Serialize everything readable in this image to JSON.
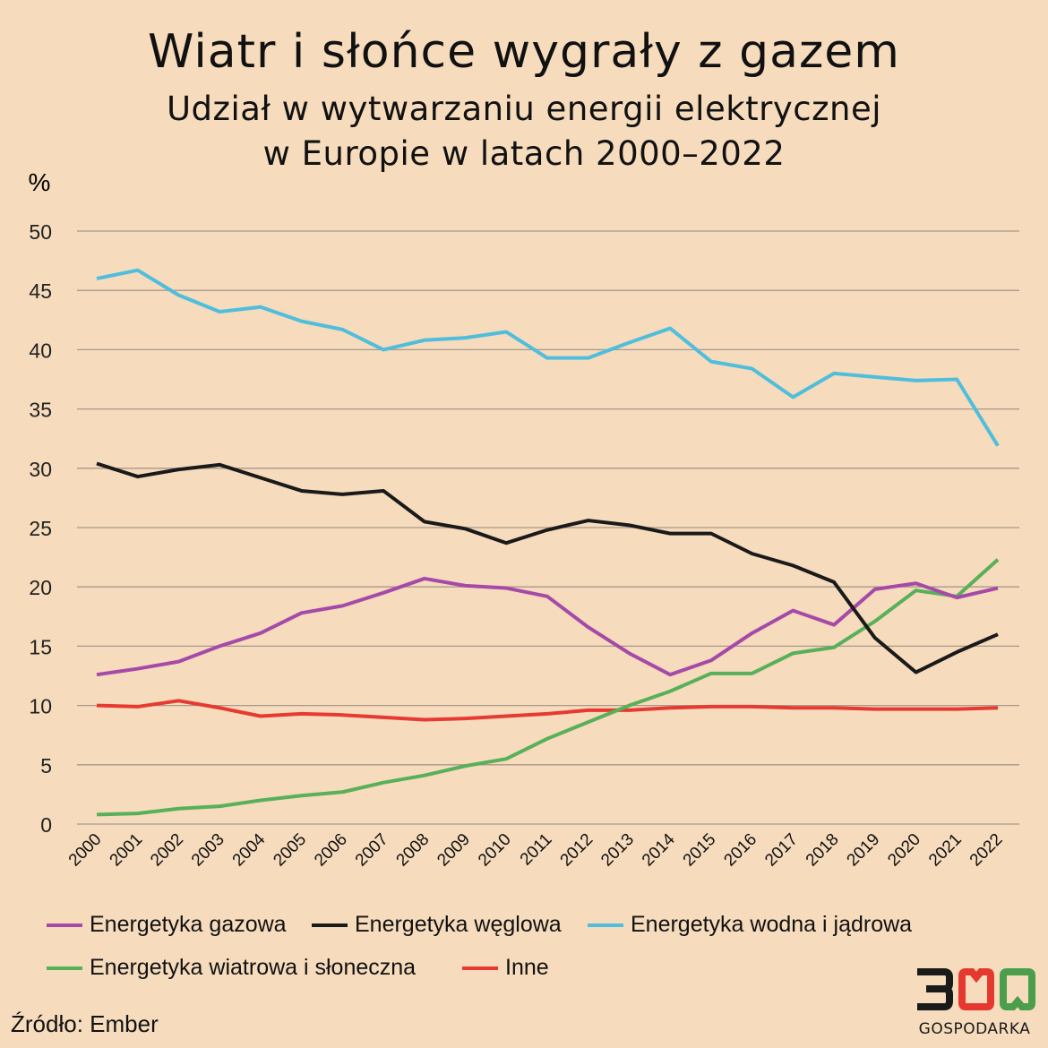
{
  "title": "Wiatr i słońce wygrały z gazem",
  "subtitle_line1": "Udział w wytwarzaniu energii elektrycznej",
  "subtitle_line2": "w Europie w latach 2000–2022",
  "source": "Źródło: Ember",
  "logo": {
    "text": "300",
    "subtext": "GOSPODARKA",
    "colors": [
      "#1a1a1a",
      "#e5392f",
      "#4a9e4c"
    ]
  },
  "chart_data": {
    "type": "line",
    "ylabel": "%",
    "ylim": [
      0,
      50
    ],
    "yticks": [
      0,
      5,
      10,
      15,
      20,
      25,
      30,
      35,
      40,
      45,
      50
    ],
    "grid": true,
    "legend_position": "bottom",
    "x": [
      "2000",
      "2001",
      "2002",
      "2003",
      "2004",
      "2005",
      "2006",
      "2007",
      "2008",
      "2009",
      "2010",
      "2011",
      "2012",
      "2013",
      "2014",
      "2015",
      "2016",
      "2017",
      "2018",
      "2019",
      "2020",
      "2021",
      "2022"
    ],
    "series": [
      {
        "name": "Energetyka gazowa",
        "color": "#a54aa8",
        "values": [
          12.6,
          13.1,
          13.7,
          15.0,
          16.1,
          17.8,
          18.4,
          19.5,
          20.7,
          20.1,
          19.9,
          19.2,
          16.6,
          14.4,
          12.6,
          13.8,
          16.1,
          18.0,
          16.8,
          19.8,
          20.3,
          19.1,
          19.9
        ]
      },
      {
        "name": "Energetyka węglowa",
        "color": "#1a1a1a",
        "values": [
          30.4,
          29.3,
          29.9,
          30.3,
          29.2,
          28.1,
          27.8,
          28.1,
          25.5,
          24.9,
          23.7,
          24.8,
          25.6,
          25.2,
          24.5,
          24.5,
          22.8,
          21.8,
          20.4,
          15.7,
          12.8,
          14.5,
          16.0
        ]
      },
      {
        "name": "Energetyka wodna i jądrowa",
        "color": "#4fbedc",
        "values": [
          46.0,
          46.7,
          44.6,
          43.2,
          43.6,
          42.4,
          41.7,
          40.0,
          40.8,
          41.0,
          41.5,
          39.3,
          39.3,
          40.6,
          41.8,
          39.0,
          38.4,
          36.0,
          38.0,
          37.7,
          37.4,
          37.5,
          31.9
        ]
      },
      {
        "name": "Energetyka wiatrowa i słoneczna",
        "color": "#58b05a",
        "values": [
          0.8,
          0.9,
          1.3,
          1.5,
          2.0,
          2.4,
          2.7,
          3.5,
          4.1,
          4.9,
          5.5,
          7.2,
          8.6,
          10.0,
          11.2,
          12.7,
          12.7,
          14.4,
          14.9,
          17.1,
          19.7,
          19.2,
          22.3
        ]
      },
      {
        "name": "Inne",
        "color": "#e63a32",
        "values": [
          10.0,
          9.9,
          10.4,
          9.8,
          9.1,
          9.3,
          9.2,
          9.0,
          8.8,
          8.9,
          9.1,
          9.3,
          9.6,
          9.6,
          9.8,
          9.9,
          9.9,
          9.8,
          9.8,
          9.7,
          9.7,
          9.7,
          9.8
        ]
      }
    ]
  }
}
